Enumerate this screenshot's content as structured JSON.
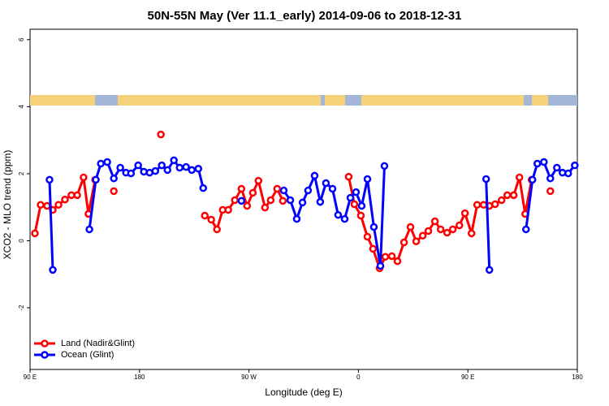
{
  "chart_data": {
    "type": "line",
    "title": "50N-55N May (Ver 11.1_early)   2014-09-06 to 2018-12-31",
    "x_label": "Longitude (deg E)",
    "y_label": "XCO2 - MLO trend (ppm)",
    "xlim": [
      90,
      540
    ],
    "ylim": [
      -3.84,
      6.31
    ],
    "xticks": [
      {
        "value": 90,
        "label": "90 E"
      },
      {
        "value": 180,
        "label": "180"
      },
      {
        "value": 270,
        "label": "90 W"
      },
      {
        "value": 360,
        "label": "0"
      },
      {
        "value": 450,
        "label": "90 E"
      },
      {
        "value": 540,
        "label": "180"
      }
    ],
    "yticks": [
      -2,
      0,
      2,
      4,
      6
    ],
    "legend": "bottom-left",
    "series": [
      {
        "name": "Land (Nadir&Glint)",
        "color": "#ff0000",
        "x": [
          94,
          98.7,
          104,
          108.7,
          113.4,
          118.7,
          124,
          128.8,
          134,
          138,
          143.5,
          null,
          158.9,
          null,
          197.6,
          null,
          233.7,
          239,
          243.7,
          248.4,
          253,
          258.4,
          263.8,
          268.5,
          273.2,
          277.8,
          283.2,
          287.9,
          293.2,
          297.9,
          null,
          352,
          356.7,
          362,
          367.4,
          372,
          377.4,
          382.1,
          387.5,
          392.1,
          397.5,
          402.8,
          407.5,
          412.9,
          417.5,
          422.9,
          427.6,
          432.9,
          437.6,
          443,
          447.6,
          453,
          457.6,
          463,
          467.7,
          472.4,
          477.7,
          482.4,
          487.7,
          492.4,
          497.1,
          502.4,
          null,
          517.8
        ],
        "values": [
          0.22,
          1.07,
          1.04,
          0.92,
          1.07,
          1.23,
          1.36,
          1.36,
          1.89,
          0.8,
          1.82,
          null,
          1.48,
          null,
          3.17,
          null,
          0.75,
          0.63,
          0.34,
          0.92,
          0.92,
          1.21,
          1.55,
          1.04,
          1.43,
          1.79,
          0.99,
          1.21,
          1.55,
          1.19,
          null,
          1.91,
          1.09,
          0.75,
          0.12,
          -0.24,
          -0.82,
          -0.48,
          -0.46,
          -0.61,
          -0.05,
          0.41,
          -0.02,
          0.15,
          0.29,
          0.58,
          0.34,
          0.24,
          0.34,
          0.46,
          0.82,
          0.22,
          1.07,
          1.07,
          1.04,
          1.09,
          1.21,
          1.36,
          1.36,
          1.89,
          0.8,
          1.82,
          null,
          1.48
        ]
      },
      {
        "name": "Ocean (Glint)",
        "color": "#0000ff",
        "x": [
          106,
          108.7,
          null,
          138.8,
          144.1,
          148.2,
          153.5,
          158.9,
          164.2,
          168.9,
          173,
          178.9,
          183.6,
          188.3,
          193,
          198.3,
          203,
          208.3,
          213,
          218.3,
          223,
          228.4,
          232.4,
          null,
          263.8,
          null,
          298.6,
          304,
          309.3,
          314,
          318.6,
          324,
          328.6,
          333.3,
          338.7,
          343.3,
          348.7,
          353.4,
          358,
          362.7,
          367.4,
          372.7,
          378.1,
          381.4,
          null,
          465,
          467.7,
          null,
          497.8,
          503.1,
          507.1,
          512.5,
          517.8,
          523.2,
          527.8,
          532.5,
          537.9
        ],
        "values": [
          1.82,
          -0.87,
          null,
          0.34,
          1.82,
          2.3,
          2.35,
          1.86,
          2.18,
          2.03,
          2.01,
          2.25,
          2.06,
          2.03,
          2.08,
          2.25,
          2.11,
          2.4,
          2.18,
          2.2,
          2.11,
          2.15,
          1.57,
          null,
          1.19,
          null,
          1.5,
          1.21,
          0.65,
          1.14,
          1.5,
          1.94,
          1.16,
          1.72,
          1.55,
          0.77,
          0.65,
          1.28,
          1.45,
          1.04,
          1.84,
          0.41,
          -0.75,
          2.23,
          null,
          1.84,
          -0.87,
          null,
          0.34,
          1.82,
          2.3,
          2.35,
          1.86,
          2.18,
          2.03,
          2.01,
          2.25
        ]
      }
    ]
  }
}
